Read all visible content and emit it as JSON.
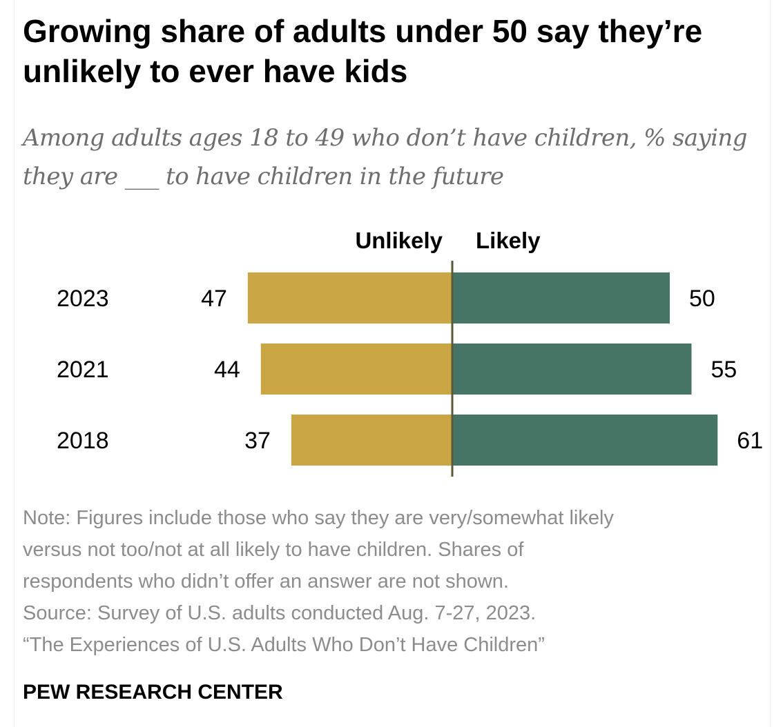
{
  "title": "Growing share of adults under 50 say they’re unlikely to ever have kids",
  "subtitle": "Among adults ages 18 to 49 who don’t have children, % saying they are ___ to have children in the future",
  "chart_data": {
    "type": "bar",
    "orientation": "horizontal-diverging",
    "categories": [
      "2023",
      "2021",
      "2018"
    ],
    "series": [
      {
        "name": "Unlikely",
        "values": [
          47,
          44,
          37
        ],
        "color": "#c9a544"
      },
      {
        "name": "Likely",
        "values": [
          50,
          55,
          61
        ],
        "color": "#477565"
      }
    ],
    "data_labels": true,
    "grid": false,
    "legend": "top-center"
  },
  "notes": [
    "Note: Figures include those who say they are very/somewhat likely",
    "versus not too/not at all likely to have children. Shares of",
    "respondents who didn’t offer an answer are not shown.",
    "Source: Survey of U.S. adults conducted Aug. 7-27, 2023.",
    "“The Experiences of U.S. Adults Who Don’t Have Children”"
  ],
  "footer": "PEW RESEARCH CENTER",
  "colors": {
    "axis": "#5a5a3a",
    "notes_text": "#8c8c8c",
    "subtitle_text": "#6e6e6e"
  }
}
